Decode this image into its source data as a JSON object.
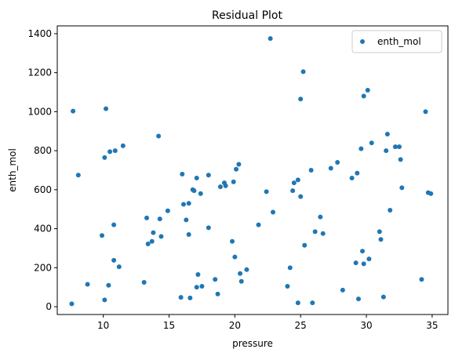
{
  "chart_data": {
    "type": "scatter",
    "title": "Residual Plot",
    "xlabel": "pressure",
    "ylabel": "enth_mol",
    "xlim": [
      6.5,
      36.2
    ],
    "ylim": [
      -40,
      1440
    ],
    "xticks": [
      10,
      15,
      20,
      25,
      30,
      35
    ],
    "yticks": [
      0,
      200,
      400,
      600,
      800,
      1000,
      1200,
      1400
    ],
    "grid": false,
    "legend_position": "top-right",
    "series": [
      {
        "name": "enth_mol",
        "color": "#1f77b4",
        "points": [
          [
            7.6,
            15
          ],
          [
            7.7,
            1003
          ],
          [
            8.1,
            675
          ],
          [
            8.8,
            115
          ],
          [
            9.9,
            365
          ],
          [
            10.1,
            35
          ],
          [
            10.1,
            765
          ],
          [
            10.2,
            1015
          ],
          [
            10.4,
            110
          ],
          [
            10.5,
            795
          ],
          [
            10.8,
            420
          ],
          [
            10.8,
            238
          ],
          [
            10.9,
            800
          ],
          [
            11.2,
            205
          ],
          [
            11.5,
            825
          ],
          [
            13.1,
            125
          ],
          [
            13.3,
            455
          ],
          [
            13.4,
            322
          ],
          [
            13.7,
            335
          ],
          [
            13.8,
            380
          ],
          [
            14.2,
            875
          ],
          [
            14.3,
            450
          ],
          [
            14.4,
            360
          ],
          [
            14.9,
            492
          ],
          [
            15.9,
            48
          ],
          [
            16.0,
            680
          ],
          [
            16.1,
            525
          ],
          [
            16.3,
            445
          ],
          [
            16.5,
            370
          ],
          [
            16.5,
            530
          ],
          [
            16.6,
            45
          ],
          [
            16.8,
            600
          ],
          [
            16.9,
            595
          ],
          [
            17.1,
            100
          ],
          [
            17.1,
            660
          ],
          [
            17.2,
            165
          ],
          [
            17.4,
            580
          ],
          [
            17.5,
            105
          ],
          [
            18.0,
            405
          ],
          [
            18.0,
            675
          ],
          [
            18.5,
            140
          ],
          [
            18.7,
            65
          ],
          [
            18.9,
            615
          ],
          [
            19.2,
            635
          ],
          [
            19.3,
            620
          ],
          [
            19.8,
            335
          ],
          [
            19.9,
            640
          ],
          [
            20.0,
            255
          ],
          [
            20.1,
            705
          ],
          [
            20.3,
            730
          ],
          [
            20.4,
            170
          ],
          [
            20.5,
            130
          ],
          [
            20.9,
            190
          ],
          [
            21.8,
            420
          ],
          [
            22.4,
            590
          ],
          [
            22.7,
            1375
          ],
          [
            22.9,
            485
          ],
          [
            24.0,
            105
          ],
          [
            24.2,
            200
          ],
          [
            24.4,
            595
          ],
          [
            24.5,
            635
          ],
          [
            24.8,
            20
          ],
          [
            24.8,
            650
          ],
          [
            25.0,
            565
          ],
          [
            25.0,
            1065
          ],
          [
            25.2,
            1205
          ],
          [
            25.3,
            315
          ],
          [
            25.8,
            700
          ],
          [
            25.9,
            20
          ],
          [
            26.1,
            385
          ],
          [
            26.5,
            460
          ],
          [
            26.7,
            375
          ],
          [
            27.3,
            710
          ],
          [
            27.8,
            740
          ],
          [
            28.2,
            85
          ],
          [
            28.9,
            660
          ],
          [
            29.2,
            225
          ],
          [
            29.3,
            685
          ],
          [
            29.4,
            40
          ],
          [
            29.6,
            810
          ],
          [
            29.7,
            285
          ],
          [
            29.8,
            220
          ],
          [
            29.8,
            1080
          ],
          [
            30.1,
            1110
          ],
          [
            30.2,
            245
          ],
          [
            30.4,
            840
          ],
          [
            31.0,
            385
          ],
          [
            31.1,
            345
          ],
          [
            31.3,
            50
          ],
          [
            31.5,
            800
          ],
          [
            31.6,
            885
          ],
          [
            31.8,
            495
          ],
          [
            32.2,
            820
          ],
          [
            32.5,
            820
          ],
          [
            32.6,
            755
          ],
          [
            32.7,
            610
          ],
          [
            34.2,
            140
          ],
          [
            34.5,
            1000
          ],
          [
            34.7,
            585
          ],
          [
            34.9,
            580
          ]
        ]
      }
    ]
  }
}
